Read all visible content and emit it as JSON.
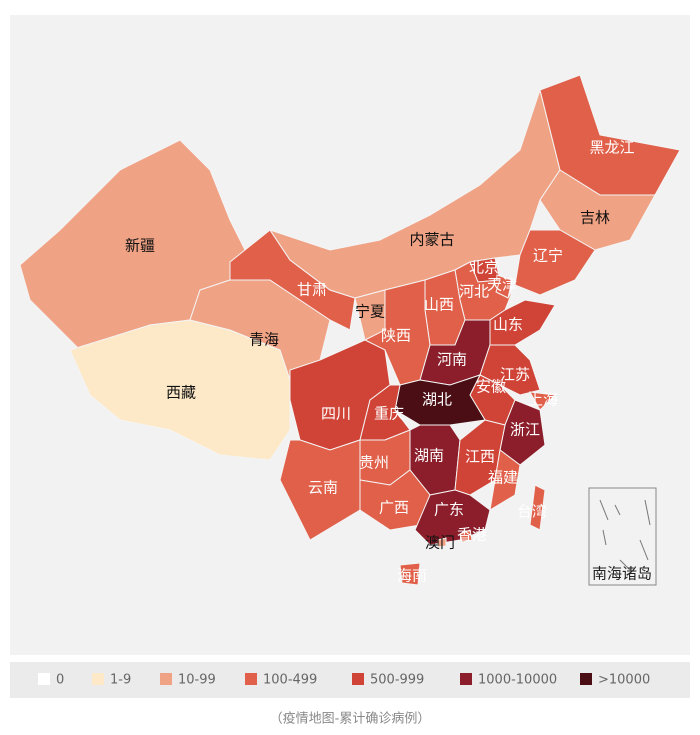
{
  "map": {
    "regions": [
      {
        "name": "新疆",
        "color": "#f0a285"
      },
      {
        "name": "西藏",
        "color": "#fde9c8"
      },
      {
        "name": "青海",
        "color": "#f0a285"
      },
      {
        "name": "甘肃",
        "color": "#e0604a"
      },
      {
        "name": "内蒙古",
        "color": "#f0a285"
      },
      {
        "name": "黑龙江",
        "color": "#e0604a"
      },
      {
        "name": "吉林",
        "color": "#f0a285"
      },
      {
        "name": "辽宁",
        "color": "#e0604a"
      },
      {
        "name": "北京",
        "color": "#d04437"
      },
      {
        "name": "天津",
        "color": "#e0604a"
      },
      {
        "name": "河北",
        "color": "#e0604a"
      },
      {
        "name": "山西",
        "color": "#e0604a"
      },
      {
        "name": "宁夏",
        "color": "#f0a285"
      },
      {
        "name": "陕西",
        "color": "#e0604a"
      },
      {
        "name": "山东",
        "color": "#d04437"
      },
      {
        "name": "河南",
        "color": "#8b1e2a"
      },
      {
        "name": "江苏",
        "color": "#d04437"
      },
      {
        "name": "安徽",
        "color": "#d04437"
      },
      {
        "name": "上海",
        "color": "#e0604a"
      },
      {
        "name": "湖北",
        "color": "#4a0e14"
      },
      {
        "name": "浙江",
        "color": "#8b1e2a"
      },
      {
        "name": "四川",
        "color": "#d04437"
      },
      {
        "name": "重庆",
        "color": "#d04437"
      },
      {
        "name": "湖南",
        "color": "#8b1e2a"
      },
      {
        "name": "江西",
        "color": "#d04437"
      },
      {
        "name": "福建",
        "color": "#e0604a"
      },
      {
        "name": "贵州",
        "color": "#e0604a"
      },
      {
        "name": "云南",
        "color": "#e0604a"
      },
      {
        "name": "广西",
        "color": "#e0604a"
      },
      {
        "name": "广东",
        "color": "#8b1e2a"
      },
      {
        "name": "台湾",
        "color": "#e0604a"
      },
      {
        "name": "香港",
        "color": "#e0604a"
      },
      {
        "name": "澳门",
        "color": "#f0a285"
      },
      {
        "name": "海南",
        "color": "#e0604a"
      }
    ],
    "south_sea_label": "南海诸岛",
    "legend": [
      {
        "label": "0",
        "color": "#ffffff"
      },
      {
        "label": "1-9",
        "color": "#fde9c8"
      },
      {
        "label": "10-99",
        "color": "#f0a285"
      },
      {
        "label": "100-499",
        "color": "#e0604a"
      },
      {
        "label": "500-999",
        "color": "#d04437"
      },
      {
        "label": "1000-10000",
        "color": "#8b1e2a"
      },
      {
        "label": ">10000",
        "color": "#4a0e14"
      }
    ],
    "caption": "（疫情地图-累计确诊病例）"
  }
}
